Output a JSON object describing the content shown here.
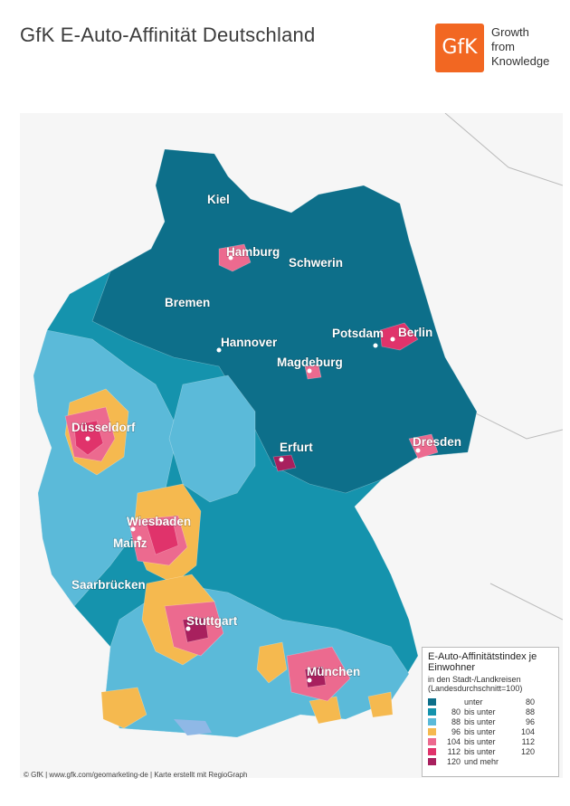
{
  "header": {
    "title": "GfK E-Auto-Affinität Deutschland",
    "logo_text": "GfK",
    "tagline": [
      "Growth",
      "from",
      "Knowledge"
    ]
  },
  "colors": {
    "sea": "#ffffff",
    "land_bg": "#f6f6f6",
    "c_lt80": "#0d6f8a",
    "c_80_88": "#1593ad",
    "c_88_96": "#5bbad9",
    "c_96_104": "#f5b94f",
    "c_104_112": "#ec6a8f",
    "c_112_120": "#e0336b",
    "c_120": "#a8205e",
    "logo": "#f26722"
  },
  "map": {
    "cities": [
      {
        "name": "Kiel"
      },
      {
        "name": "Hamburg"
      },
      {
        "name": "Schwerin"
      },
      {
        "name": "Bremen"
      },
      {
        "name": "Hannover"
      },
      {
        "name": "Potsdam"
      },
      {
        "name": "Berlin"
      },
      {
        "name": "Magdeburg"
      },
      {
        "name": "Düsseldorf"
      },
      {
        "name": "Erfurt"
      },
      {
        "name": "Dresden"
      },
      {
        "name": "Wiesbaden"
      },
      {
        "name": "Mainz"
      },
      {
        "name": "Saarbrücken"
      },
      {
        "name": "Stuttgart"
      },
      {
        "name": "München"
      }
    ]
  },
  "legend": {
    "title": "E-Auto-Affinitätstindex je Einwohner",
    "subtitle_1": "in den Stadt-/Landkreisen",
    "subtitle_2": "(Landesdurchschnitt=100)",
    "rows": [
      {
        "from": "",
        "mid": "unter",
        "to": "80",
        "color": "#0d6f8a"
      },
      {
        "from": "80",
        "mid": "bis unter",
        "to": "88",
        "color": "#1593ad"
      },
      {
        "from": "88",
        "mid": "bis unter",
        "to": "96",
        "color": "#5bbad9"
      },
      {
        "from": "96",
        "mid": "bis unter",
        "to": "104",
        "color": "#f5b94f"
      },
      {
        "from": "104",
        "mid": "bis unter",
        "to": "112",
        "color": "#ec6a8f"
      },
      {
        "from": "112",
        "mid": "bis unter",
        "to": "120",
        "color": "#e0336b"
      },
      {
        "from": "120",
        "mid": "und mehr",
        "to": "",
        "color": "#a8205e"
      }
    ]
  },
  "footer": "© GfK | www.gfk.com/geomarketing-de | Karte erstellt mit RegioGraph"
}
